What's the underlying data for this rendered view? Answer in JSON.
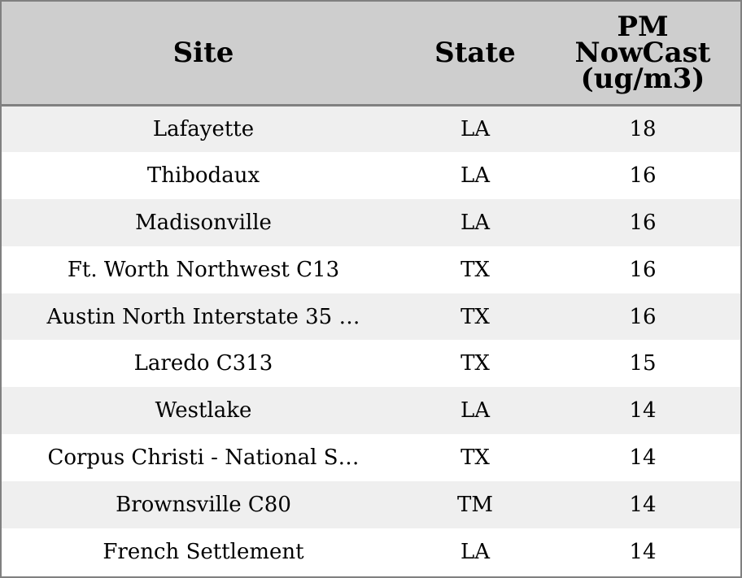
{
  "chart_data": {
    "type": "table",
    "columns": [
      "Site",
      "State",
      "PM NowCast (ug/m3)"
    ],
    "header_lines": {
      "site": "Site",
      "state": "State",
      "pm_line1": "PM",
      "pm_line2": "NowCast",
      "pm_line3": "(ug/m3)"
    },
    "rows": [
      {
        "site": "Lafayette",
        "state": "LA",
        "pm": "18"
      },
      {
        "site": "Thibodaux",
        "state": "LA",
        "pm": "16"
      },
      {
        "site": "Madisonville",
        "state": "LA",
        "pm": "16"
      },
      {
        "site": "Ft. Worth Northwest C13",
        "state": "TX",
        "pm": "16"
      },
      {
        "site": "Austin North Interstate 35 …",
        "state": "TX",
        "pm": "16"
      },
      {
        "site": "Laredo C313",
        "state": "TX",
        "pm": "15"
      },
      {
        "site": "Westlake",
        "state": "LA",
        "pm": "14"
      },
      {
        "site": "Corpus Christi - National S…",
        "state": "TX",
        "pm": "14"
      },
      {
        "site": "Brownsville C80",
        "state": "TM",
        "pm": "14"
      },
      {
        "site": "French Settlement",
        "state": "LA",
        "pm": "14"
      }
    ]
  },
  "colors": {
    "header_bg": "#cecece",
    "band_bg": "#efefef",
    "row_bg": "#ffffff",
    "border": "#808080"
  }
}
